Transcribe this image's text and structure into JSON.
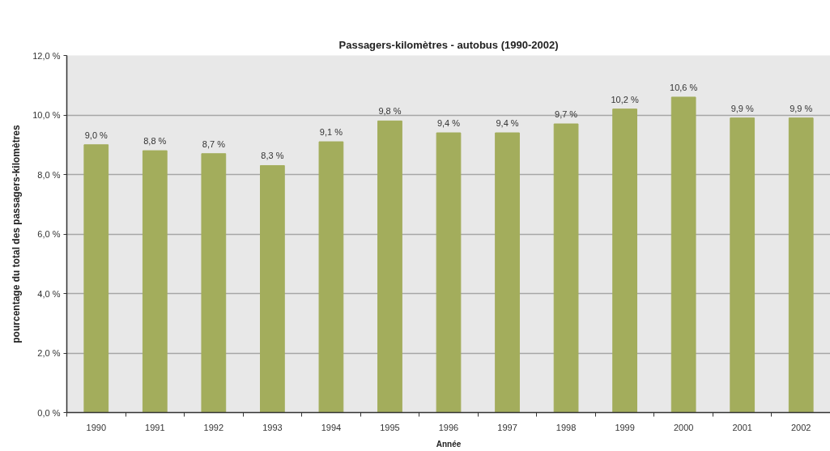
{
  "chart_data": {
    "type": "bar",
    "title": "Passagers-kilomètres - autobus (1990-2002)",
    "xlabel": "Année",
    "ylabel": "pourcentage du total des passagers-kilomètres",
    "categories": [
      "1990",
      "1991",
      "1992",
      "1993",
      "1994",
      "1995",
      "1996",
      "1997",
      "1998",
      "1999",
      "2000",
      "2001",
      "2002"
    ],
    "values": [
      9.0,
      8.8,
      8.7,
      8.3,
      9.1,
      9.8,
      9.4,
      9.4,
      9.7,
      10.2,
      10.6,
      9.9,
      9.9
    ],
    "value_labels": [
      "9,0 %",
      "8,8 %",
      "8,7 %",
      "8,3 %",
      "9,1 %",
      "9,8 %",
      "9,4 %",
      "9,4 %",
      "9,7 %",
      "10,2 %",
      "10,6 %",
      "9,9 %",
      "9,9 %"
    ],
    "color": "#a3ad5c",
    "ylim": [
      0,
      12
    ],
    "yticks": [
      {
        "value": 0,
        "label": "0,0 %"
      },
      {
        "value": 2,
        "label": "2,0 %"
      },
      {
        "value": 4,
        "label": "4,0 %"
      },
      {
        "value": 6,
        "label": "6,0 %"
      },
      {
        "value": 8,
        "label": "8,0 %"
      },
      {
        "value": 10,
        "label": "10,0 %"
      },
      {
        "value": 12,
        "label": "12,0 %"
      }
    ],
    "grid": "y"
  }
}
